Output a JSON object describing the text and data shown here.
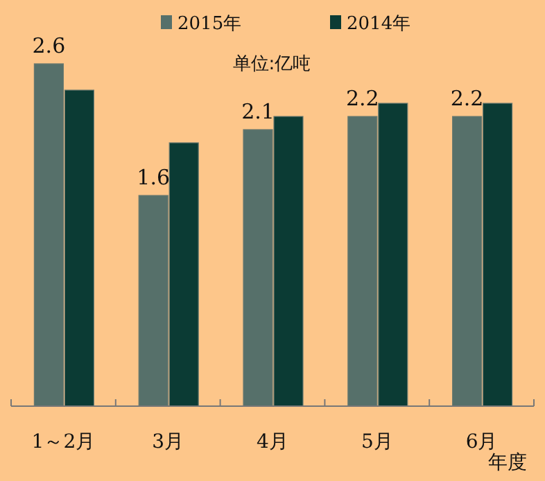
{
  "chart_data": {
    "type": "bar",
    "categories": [
      "1～2月",
      "3月",
      "4月",
      "5月",
      "6月"
    ],
    "series": [
      {
        "name": "2015年",
        "color": "#56706a",
        "values": [
          2.6,
          1.6,
          2.1,
          2.2,
          2.2
        ],
        "value_labels": [
          "2.6",
          "1.6",
          "2.1",
          "2.2",
          "2.2"
        ]
      },
      {
        "name": "2014年",
        "color": "#0b3b34",
        "values": [
          2.4,
          2.0,
          2.2,
          2.3,
          2.3
        ]
      }
    ],
    "xlabel": "年度",
    "annotations": [
      "单位:亿吨"
    ],
    "legend": "top",
    "tick_labels": "x"
  }
}
